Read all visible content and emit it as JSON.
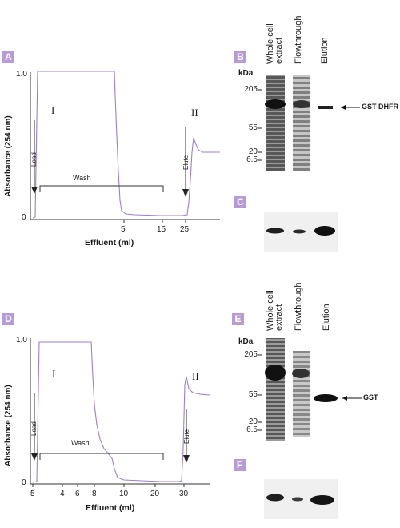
{
  "figure": {
    "top": {
      "panel_a_label": "A",
      "panel_b_label": "B",
      "panel_c_label": "C",
      "ylabel": "Absorbance (254 nm)",
      "xlabel": "Effluent (ml)",
      "y_ticks": [
        "1.0",
        "0"
      ],
      "x_ticks": [
        "5",
        "15",
        "25"
      ],
      "peak_1": "I",
      "peak_2": "II",
      "load": "Load",
      "wash": "Wash",
      "elute": "Elute",
      "kda": "kDa",
      "mw_markers": [
        "205",
        "55",
        "20",
        "6.5"
      ],
      "lanes": [
        "Whole cell extract",
        "Flowthrough",
        "Elution"
      ],
      "band": "GST-DHFR"
    },
    "bottom": {
      "panel_d_label": "D",
      "panel_e_label": "E",
      "panel_f_label": "F",
      "ylabel": "Absorbance (254 nm)",
      "xlabel": "Effluent (ml)",
      "y_ticks": [
        "1.0",
        "0"
      ],
      "x_ticks": [
        "5",
        "4",
        "6",
        "8",
        "10",
        "20",
        "30"
      ],
      "peak_1": "I",
      "peak_2": "II",
      "load": "Load",
      "wash": "Wash",
      "elute": "Elute",
      "kda": "kDa",
      "mw_markers": [
        "205",
        "55",
        "20",
        "6.5"
      ],
      "lanes": [
        "Whole cell extract",
        "Flowthrough",
        "Elution"
      ],
      "band": "GST"
    }
  },
  "colors": {
    "trace": "#9b7fcf",
    "label_bg": "#b79ad6",
    "gel": "#2a2a2a"
  }
}
